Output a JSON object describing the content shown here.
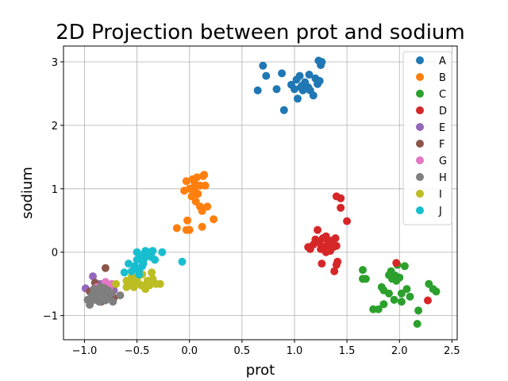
{
  "chart_data": {
    "type": "scatter",
    "title": "2D Projection between prot and sodium",
    "xlabel": "prot",
    "ylabel": "sodium",
    "xlim": [
      -1.2,
      2.55
    ],
    "ylim": [
      -1.38,
      3.25
    ],
    "xticks": [
      -1.0,
      -0.5,
      0.0,
      0.5,
      1.0,
      1.5,
      2.0,
      2.5
    ],
    "xtick_labels": [
      "−1.0",
      "−0.5",
      "0.0",
      "0.5",
      "1.0",
      "1.5",
      "2.0",
      "2.5"
    ],
    "yticks": [
      -1,
      0,
      1,
      2,
      3
    ],
    "ytick_labels": [
      "−1",
      "0",
      "1",
      "2",
      "3"
    ],
    "grid": true,
    "legend_position": "top-right",
    "series": [
      {
        "name": "A",
        "color": "#1f77b4",
        "points": [
          [
            0.7,
            2.94
          ],
          [
            0.73,
            2.78
          ],
          [
            0.65,
            2.55
          ],
          [
            0.83,
            2.57
          ],
          [
            0.88,
            2.82
          ],
          [
            0.9,
            2.24
          ],
          [
            0.97,
            2.64
          ],
          [
            1.0,
            2.57
          ],
          [
            1.02,
            2.72
          ],
          [
            1.03,
            2.42
          ],
          [
            1.05,
            2.78
          ],
          [
            1.06,
            2.6
          ],
          [
            1.08,
            2.55
          ],
          [
            1.1,
            2.68
          ],
          [
            1.12,
            2.58
          ],
          [
            1.14,
            2.8
          ],
          [
            1.15,
            2.55
          ],
          [
            1.18,
            2.47
          ],
          [
            1.2,
            2.74
          ],
          [
            1.22,
            2.65
          ],
          [
            1.23,
            3.02
          ],
          [
            1.24,
            2.7
          ],
          [
            1.25,
            2.95
          ],
          [
            1.26,
            3.0
          ],
          [
            1.07,
            2.62
          ],
          [
            1.13,
            2.6
          ]
        ]
      },
      {
        "name": "B",
        "color": "#ff7f0e",
        "points": [
          [
            -0.12,
            0.38
          ],
          [
            -0.05,
            0.97
          ],
          [
            -0.03,
            1.12
          ],
          [
            -0.02,
            0.5
          ],
          [
            -0.03,
            0.35
          ],
          [
            0.0,
            0.35
          ],
          [
            0.02,
            0.88
          ],
          [
            0.03,
            1.15
          ],
          [
            0.05,
            0.98
          ],
          [
            0.06,
            0.8
          ],
          [
            0.07,
            1.18
          ],
          [
            0.08,
            0.92
          ],
          [
            0.1,
            0.72
          ],
          [
            0.1,
            1.05
          ],
          [
            0.12,
            0.65
          ],
          [
            0.13,
            1.2
          ],
          [
            0.14,
            1.22
          ],
          [
            0.15,
            1.05
          ],
          [
            0.17,
            0.72
          ],
          [
            0.23,
            0.52
          ],
          [
            0.12,
            0.4
          ],
          [
            0.0,
            1.0
          ],
          [
            0.05,
            1.08
          ]
        ]
      },
      {
        "name": "C",
        "color": "#2ca02c",
        "points": [
          [
            1.65,
            -0.28
          ],
          [
            1.65,
            -0.42
          ],
          [
            1.68,
            -0.42
          ],
          [
            1.75,
            -0.9
          ],
          [
            1.8,
            -0.9
          ],
          [
            1.83,
            -0.55
          ],
          [
            1.85,
            -0.6
          ],
          [
            1.85,
            -0.82
          ],
          [
            1.9,
            -0.36
          ],
          [
            1.9,
            -0.65
          ],
          [
            1.92,
            -0.3
          ],
          [
            1.93,
            -0.42
          ],
          [
            1.95,
            -0.75
          ],
          [
            1.97,
            -0.45
          ],
          [
            1.98,
            -0.2
          ],
          [
            2.0,
            -0.4
          ],
          [
            2.02,
            -0.65
          ],
          [
            2.02,
            -0.78
          ],
          [
            2.05,
            -0.22
          ],
          [
            2.07,
            -0.58
          ],
          [
            2.1,
            -0.7
          ],
          [
            2.17,
            -1.13
          ],
          [
            2.18,
            -0.92
          ],
          [
            2.28,
            -0.5
          ],
          [
            2.32,
            -0.58
          ],
          [
            2.35,
            -0.62
          ],
          [
            1.96,
            -0.37
          ]
        ]
      },
      {
        "name": "D",
        "color": "#d62728",
        "points": [
          [
            1.13,
            0.08
          ],
          [
            1.15,
            0.05
          ],
          [
            1.18,
            0.12
          ],
          [
            1.2,
            0.2
          ],
          [
            1.22,
            0.35
          ],
          [
            1.24,
            0.15
          ],
          [
            1.25,
            0.05
          ],
          [
            1.26,
            -0.18
          ],
          [
            1.27,
            0.22
          ],
          [
            1.28,
            0.08
          ],
          [
            1.3,
            0.0
          ],
          [
            1.3,
            0.25
          ],
          [
            1.31,
            0.1
          ],
          [
            1.32,
            0.15
          ],
          [
            1.34,
            0.02
          ],
          [
            1.35,
            0.18
          ],
          [
            1.37,
            0.08
          ],
          [
            1.38,
            -0.3
          ],
          [
            1.39,
            0.22
          ],
          [
            1.4,
            0.1
          ],
          [
            1.4,
            -0.2
          ],
          [
            1.41,
            -0.15
          ],
          [
            1.4,
            0.88
          ],
          [
            1.44,
            0.85
          ],
          [
            1.44,
            0.7
          ],
          [
            1.5,
            0.49
          ],
          [
            1.97,
            -0.17
          ],
          [
            2.27,
            -0.76
          ]
        ]
      },
      {
        "name": "E",
        "color": "#9467bd",
        "points": [
          [
            -0.99,
            -0.57
          ],
          [
            -0.92,
            -0.38
          ],
          [
            -0.9,
            -0.62
          ],
          [
            -0.85,
            -0.5
          ],
          [
            -0.82,
            -0.66
          ],
          [
            -0.78,
            -0.56
          ],
          [
            -0.72,
            -0.6
          ],
          [
            -0.8,
            -0.75
          ],
          [
            -0.88,
            -0.7
          ]
        ]
      },
      {
        "name": "F",
        "color": "#8c564b",
        "points": [
          [
            -0.95,
            -0.62
          ],
          [
            -0.9,
            -0.48
          ],
          [
            -0.86,
            -0.7
          ],
          [
            -0.82,
            -0.55
          ],
          [
            -0.8,
            -0.25
          ],
          [
            -0.78,
            -0.68
          ],
          [
            -0.75,
            -0.55
          ],
          [
            -0.72,
            -0.72
          ],
          [
            -0.84,
            -0.78
          ]
        ]
      },
      {
        "name": "G",
        "color": "#e377c2",
        "points": [
          [
            -0.88,
            -0.55
          ],
          [
            -0.82,
            -0.62
          ],
          [
            -0.8,
            -0.47
          ],
          [
            -0.76,
            -0.58
          ],
          [
            -0.74,
            -0.5
          ],
          [
            -0.78,
            -0.72
          ],
          [
            -0.85,
            -0.68
          ]
        ]
      },
      {
        "name": "H",
        "color": "#7f7f7f",
        "points": [
          [
            -0.97,
            -0.75
          ],
          [
            -0.95,
            -0.83
          ],
          [
            -0.93,
            -0.68
          ],
          [
            -0.91,
            -0.58
          ],
          [
            -0.9,
            -0.75
          ],
          [
            -0.88,
            -0.65
          ],
          [
            -0.86,
            -0.78
          ],
          [
            -0.85,
            -0.55
          ],
          [
            -0.83,
            -0.7
          ],
          [
            -0.81,
            -0.62
          ],
          [
            -0.8,
            -0.76
          ],
          [
            -0.78,
            -0.6
          ],
          [
            -0.77,
            -0.7
          ],
          [
            -0.74,
            -0.64
          ],
          [
            -0.73,
            -0.78
          ],
          [
            -0.66,
            -0.68
          ],
          [
            -0.87,
            -0.62
          ],
          [
            -0.82,
            -0.56
          ]
        ]
      },
      {
        "name": "I",
        "color": "#bcbd22",
        "points": [
          [
            -0.7,
            -0.5
          ],
          [
            -0.6,
            -0.45
          ],
          [
            -0.58,
            -0.52
          ],
          [
            -0.55,
            -0.38
          ],
          [
            -0.53,
            -0.55
          ],
          [
            -0.5,
            -0.42
          ],
          [
            -0.48,
            -0.5
          ],
          [
            -0.45,
            -0.35
          ],
          [
            -0.43,
            -0.55
          ],
          [
            -0.4,
            -0.45
          ],
          [
            -0.38,
            -0.52
          ],
          [
            -0.36,
            -0.32
          ],
          [
            -0.35,
            -0.42
          ],
          [
            -0.32,
            -0.5
          ],
          [
            -0.28,
            -0.5
          ],
          [
            -0.55,
            -0.48
          ],
          [
            -0.46,
            -0.52
          ],
          [
            -0.42,
            -0.58
          ],
          [
            -0.6,
            -0.55
          ]
        ]
      },
      {
        "name": "J",
        "color": "#17becf",
        "points": [
          [
            -0.62,
            -0.32
          ],
          [
            -0.58,
            -0.18
          ],
          [
            -0.55,
            -0.3
          ],
          [
            -0.52,
            -0.22
          ],
          [
            -0.5,
            0.0
          ],
          [
            -0.5,
            -0.12
          ],
          [
            -0.48,
            -0.35
          ],
          [
            -0.46,
            -0.05
          ],
          [
            -0.45,
            -0.22
          ],
          [
            -0.43,
            -0.1
          ],
          [
            -0.42,
            0.02
          ],
          [
            -0.4,
            -0.05
          ],
          [
            -0.38,
            0.0
          ],
          [
            -0.36,
            -0.08
          ],
          [
            -0.35,
            0.02
          ],
          [
            -0.33,
            -0.12
          ],
          [
            -0.26,
            0.0
          ],
          [
            -0.07,
            -0.15
          ],
          [
            -0.48,
            -0.28
          ],
          [
            -0.44,
            -0.18
          ]
        ]
      }
    ]
  }
}
